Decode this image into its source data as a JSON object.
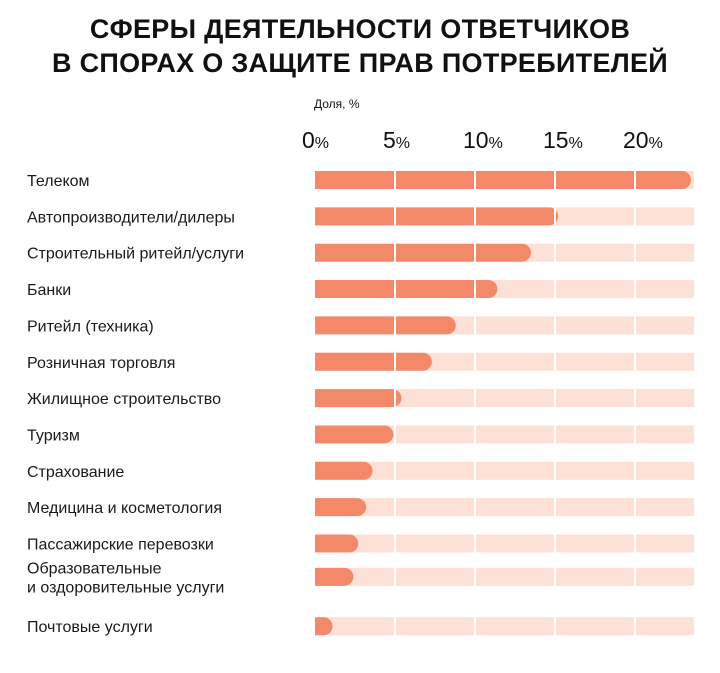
{
  "title": {
    "line1": "СФЕРЫ ДЕЯТЕЛЬНОСТИ ОТВЕТЧИКОВ",
    "line2": "В СПОРАХ О ЗАЩИТЕ ПРАВ ПОТРЕБИТЕЛЕЙ"
  },
  "colors": {
    "bar": "#f4896a",
    "track": "#fde0d6",
    "gridline": "#ffffff"
  },
  "chart_data": {
    "type": "bar",
    "orientation": "horizontal",
    "title": "СФЕРЫ ДЕЯТЕЛЬНОСТИ ОТВЕТЧИКОВ В СПОРАХ О ЗАЩИТЕ ПРАВ ПОТРЕБИТЕЛЕЙ",
    "xlabel": "Доля, %",
    "xlim": [
      0,
      23.5
    ],
    "ticks": [
      {
        "value": 0,
        "num": "0",
        "unit": "%"
      },
      {
        "value": 5,
        "num": "5",
        "unit": "%"
      },
      {
        "value": 10,
        "num": "10",
        "unit": "%"
      },
      {
        "value": 15,
        "num": "15",
        "unit": "%"
      },
      {
        "value": 20,
        "num": "20",
        "unit": "%"
      }
    ],
    "grid": true,
    "categories": [
      [
        "Телеком"
      ],
      [
        "Автопроизводители/дилеры"
      ],
      [
        "Строительный ритейл/услуги"
      ],
      [
        "Банки"
      ],
      [
        "Ритейл (техника)"
      ],
      [
        "Розничная торговля"
      ],
      [
        "Жилищное строительство"
      ],
      [
        "Туризм"
      ],
      [
        "Страхование"
      ],
      [
        "Медицина и косметология"
      ],
      [
        "Пассажирские перевозки"
      ],
      [
        "Образовательные",
        "и оздоровительные услуги"
      ],
      [
        "Почтовые услуги"
      ]
    ],
    "values": [
      23.5,
      15.2,
      13.5,
      11.4,
      8.8,
      7.3,
      5.4,
      4.9,
      3.6,
      3.2,
      2.7,
      2.4,
      1.1
    ]
  }
}
